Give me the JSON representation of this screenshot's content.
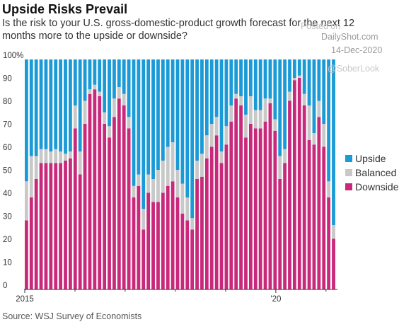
{
  "watermark": {
    "posted_on": "Posted on",
    "site": "DailyShot.com",
    "date": "14-Dec-2020",
    "handle": "@SoberLook"
  },
  "chart_data": {
    "type": "bar",
    "stacked": true,
    "title": "Upside Risks Prevail",
    "subtitle": "Is the risk to your U.S. gross-domestic-product growth forecast for the next 12 months more to the upside or downside?",
    "source": "Source: WSJ Survey of Economists",
    "ylim": [
      0,
      100
    ],
    "yticks": [
      "0",
      "10",
      "20",
      "30",
      "40",
      "50",
      "60",
      "70",
      "80",
      "90",
      "100%"
    ],
    "xtick_labels": [
      "2015",
      "'20"
    ],
    "grid": false,
    "legend_position": "right",
    "colors": {
      "Upside": "#1a9ad6",
      "Balanced": "#c8c8c8",
      "Downside": "#c8297a"
    },
    "series": [
      {
        "name": "Downside",
        "values": [
          30,
          40,
          48,
          55,
          55,
          55,
          55,
          55,
          56,
          57,
          70,
          50,
          72,
          85,
          87,
          84,
          72,
          66,
          75,
          83,
          80,
          70,
          40,
          45,
          26,
          42,
          38,
          38,
          42,
          45,
          47,
          40,
          33,
          30,
          26,
          48,
          49,
          57,
          62,
          67,
          55,
          63,
          73,
          83,
          80,
          66,
          72,
          70,
          70,
          73,
          81,
          69,
          48,
          55,
          82,
          91,
          92,
          80,
          65,
          63,
          75,
          62,
          40,
          22
        ]
      },
      {
        "name": "Balanced",
        "values": [
          17,
          18,
          10,
          6,
          6,
          5,
          6,
          5,
          3,
          3,
          10,
          10,
          10,
          2,
          2,
          2,
          5,
          5,
          8,
          5,
          5,
          5,
          5,
          5,
          9,
          8,
          10,
          14,
          14,
          17,
          17,
          12,
          13,
          10,
          5,
          8,
          10,
          10,
          10,
          8,
          5,
          8,
          7,
          2,
          4,
          10,
          12,
          8,
          8,
          10,
          2,
          5,
          10,
          6,
          4,
          1,
          1,
          5,
          15,
          5,
          7,
          10,
          7,
          6
        ]
      },
      {
        "name": "Upside",
        "values": [
          53,
          42,
          42,
          39,
          39,
          40,
          39,
          40,
          41,
          40,
          20,
          40,
          18,
          13,
          11,
          14,
          23,
          29,
          17,
          12,
          15,
          25,
          55,
          50,
          65,
          50,
          52,
          48,
          44,
          38,
          36,
          48,
          54,
          60,
          69,
          44,
          41,
          33,
          28,
          25,
          40,
          29,
          20,
          15,
          16,
          24,
          16,
          22,
          22,
          17,
          17,
          26,
          42,
          39,
          14,
          8,
          7,
          15,
          20,
          32,
          18,
          28,
          53,
          72
        ]
      }
    ]
  }
}
